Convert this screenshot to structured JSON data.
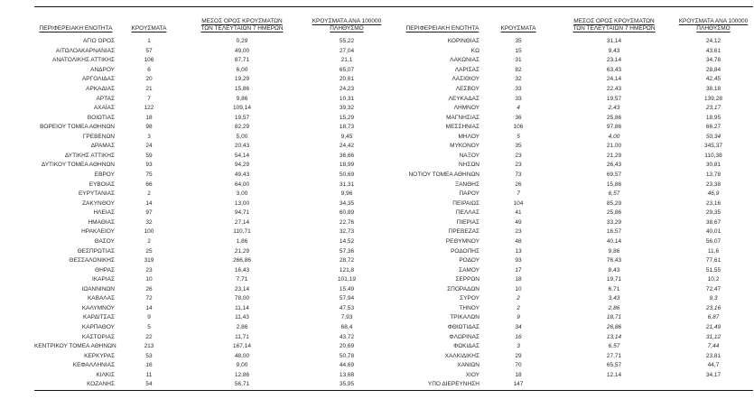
{
  "page": {
    "background": "#ffffff",
    "text_color": "#1e1e1e",
    "rule_color": "#141414"
  },
  "table": {
    "headers": {
      "region": "ΠΕΡΙΦΕΡΕΙΑΚΗ ΕΝΟΤΗΤΑ",
      "cases": "ΚΡΟΥΣΜΑΤΑ",
      "avg7_line1": "ΜΕΣΟΣ ΟΡΟΣ ΚΡΟΥΣΜΑΤΩΝ",
      "avg7_line2": "ΤΩΝ ΤΕΛΕΥΤΑΙΩΝ 7 ΗΜΕΡΩΝ",
      "per100k_line1": "ΚΡΟΥΣΜΑΤΑ ΑΝΑ 100000",
      "per100k_line2": "ΠΛΗΘΥΣΜΟ"
    },
    "left_rows": [
      {
        "region": "ΑΓΙΟ ΟΡΟΣ",
        "cases": "1",
        "avg7": "0,29",
        "per100k": "55,22"
      },
      {
        "region": "ΑΙΤΩΛΟΑΚΑΡΝΑΝΙΑΣ",
        "cases": "57",
        "avg7": "49,00",
        "per100k": "27,04"
      },
      {
        "region": "ΑΝΑΤΟΛΙΚΗΣ ΑΤΤΙΚΗΣ",
        "cases": "106",
        "avg7": "87,71",
        "per100k": "21,1"
      },
      {
        "region": "ΑΝΔΡΟΥ",
        "cases": "6",
        "avg7": "6,00",
        "per100k": "65,07"
      },
      {
        "region": "ΑΡΓΟΛΙΔΑΣ",
        "cases": "20",
        "avg7": "19,29",
        "per100k": "20,61"
      },
      {
        "region": "ΑΡΚΑΔΙΑΣ",
        "cases": "21",
        "avg7": "15,86",
        "per100k": "24,23"
      },
      {
        "region": "ΑΡΤΑΣ",
        "cases": "7",
        "avg7": "9,86",
        "per100k": "10,31"
      },
      {
        "region": "ΑΧΑΪΑΣ",
        "cases": "122",
        "avg7": "109,14",
        "per100k": "39,32"
      },
      {
        "region": "ΒΟΙΩΤΙΑΣ",
        "cases": "18",
        "avg7": "19,57",
        "per100k": "15,29"
      },
      {
        "region": "ΒΟΡΕΙΟΥ ΤΟΜΕΑ ΑΘΗΝΩΝ",
        "cases": "98",
        "avg7": "82,29",
        "per100k": "18,73"
      },
      {
        "region": "ΓΡΕΒΕΝΩΝ",
        "cases": "3",
        "avg7": "5,00",
        "per100k": "9,45"
      },
      {
        "region": "ΔΡΑΜΑΣ",
        "cases": "24",
        "avg7": "20,43",
        "per100k": "24,42"
      },
      {
        "region": "ΔΥΤΙΚΗΣ ΑΤΤΙΚΗΣ",
        "cases": "59",
        "avg7": "54,14",
        "per100k": "36,66"
      },
      {
        "region": "ΔΥΤΙΚΟΥ ΤΟΜΕΑ ΑΘΗΝΩΝ",
        "cases": "93",
        "avg7": "94,29",
        "per100k": "18,99"
      },
      {
        "region": "ΕΒΡΟΥ",
        "cases": "75",
        "avg7": "49,43",
        "per100k": "50,69"
      },
      {
        "region": "ΕΥΒΟΙΑΣ",
        "cases": "66",
        "avg7": "64,00",
        "per100k": "31,31"
      },
      {
        "region": "ΕΥΡΥΤΑΝΙΑΣ",
        "cases": "2",
        "avg7": "3,00",
        "per100k": "9,96"
      },
      {
        "region": "ΖΑΚΥΝΘΟΥ",
        "cases": "14",
        "avg7": "13,00",
        "per100k": "34,35"
      },
      {
        "region": "ΗΛΕΙΑΣ",
        "cases": "97",
        "avg7": "94,71",
        "per100k": "60,89"
      },
      {
        "region": "ΗΜΑΘΙΑΣ",
        "cases": "32",
        "avg7": "27,14",
        "per100k": "22,76"
      },
      {
        "region": "ΗΡΑΚΛΕΙΟΥ",
        "cases": "100",
        "avg7": "110,71",
        "per100k": "32,73"
      },
      {
        "region": "ΘΑΣΟΥ",
        "cases": "2",
        "avg7": "1,86",
        "per100k": "14,52"
      },
      {
        "region": "ΘΕΣΠΡΩΤΙΑΣ",
        "cases": "25",
        "avg7": "21,29",
        "per100k": "57,36"
      },
      {
        "region": "ΘΕΣΣΑΛΟΝΙΚΗΣ",
        "cases": "319",
        "avg7": "266,86",
        "per100k": "28,72"
      },
      {
        "region": "ΘΗΡΑΣ",
        "cases": "23",
        "avg7": "16,43",
        "per100k": "121,8"
      },
      {
        "region": "ΙΚΑΡΙΑΣ",
        "cases": "10",
        "avg7": "7,71",
        "per100k": "101,19"
      },
      {
        "region": "ΙΩΑΝΝΙΝΩΝ",
        "cases": "26",
        "avg7": "23,14",
        "per100k": "15,49"
      },
      {
        "region": "ΚΑΒΑΛΑΣ",
        "cases": "72",
        "avg7": "78,00",
        "per100k": "57,94"
      },
      {
        "region": "ΚΑΛΥΜΝΟΥ",
        "cases": "14",
        "avg7": "11,14",
        "per100k": "47,53"
      },
      {
        "region": "ΚΑΡΔΙΤΣΑΣ",
        "cases": "9",
        "avg7": "11,43",
        "per100k": "7,93"
      },
      {
        "region": "ΚΑΡΠΑΘΟΥ",
        "cases": "5",
        "avg7": "2,86",
        "per100k": "68,4"
      },
      {
        "region": "ΚΑΣΤΟΡΙΑΣ",
        "cases": "22",
        "avg7": "11,71",
        "per100k": "43,72"
      },
      {
        "region": "ΚΕΝΤΡΙΚΟΥ ΤΟΜΕΑ ΑΘΗΝΩΝ",
        "cases": "213",
        "avg7": "167,14",
        "per100k": "20,69"
      },
      {
        "region": "ΚΕΡΚΥΡΑΣ",
        "cases": "53",
        "avg7": "48,00",
        "per100k": "50,78"
      },
      {
        "region": "ΚΕΦΑΛΛΗΝΙΑΣ",
        "cases": "16",
        "avg7": "9,00",
        "per100k": "44,69"
      },
      {
        "region": "ΚΙΛΚΙΣ",
        "cases": "11",
        "avg7": "12,86",
        "per100k": "13,68"
      },
      {
        "region": "ΚΟΖΑΝΗΣ",
        "cases": "54",
        "avg7": "56,71",
        "per100k": "35,95"
      }
    ],
    "right_rows": [
      {
        "region": "ΚΟΡΙΝΘΙΑΣ",
        "cases": "35",
        "avg7": "31,14",
        "per100k": "24,12"
      },
      {
        "region": "ΚΩ",
        "cases": "15",
        "avg7": "9,43",
        "per100k": "43,61"
      },
      {
        "region": "ΛΑΚΩΝΙΑΣ",
        "cases": "31",
        "avg7": "23,14",
        "per100k": "34,78"
      },
      {
        "region": "ΛΑΡΙΣΑΣ",
        "cases": "82",
        "avg7": "63,43",
        "per100k": "28,84"
      },
      {
        "region": "ΛΑΣΙΘΙΟΥ",
        "cases": "32",
        "avg7": "24,14",
        "per100k": "42,45"
      },
      {
        "region": "ΛΕΣΒΟΥ",
        "cases": "33",
        "avg7": "22,43",
        "per100k": "38,18"
      },
      {
        "region": "ΛΕΥΚΑΔΑΣ",
        "cases": "33",
        "avg7": "19,57",
        "per100k": "139,28"
      },
      {
        "region": "ΛΗΜΝΟΥ",
        "cases": "4",
        "avg7": "2,43",
        "per100k": "23,17",
        "italic": true
      },
      {
        "region": "ΜΑΓΝΗΣΙΑΣ",
        "cases": "36",
        "avg7": "25,86",
        "per100k": "18,95"
      },
      {
        "region": "ΜΕΣΣΗΝΙΑΣ",
        "cases": "106",
        "avg7": "97,86",
        "per100k": "66,27"
      },
      {
        "region": "ΜΗΛΟΥ",
        "cases": "5",
        "avg7": "4,00",
        "per100k": "50,34",
        "italic": true
      },
      {
        "region": "ΜΥΚΟΝΟΥ",
        "cases": "35",
        "avg7": "21,00",
        "per100k": "345,37"
      },
      {
        "region": "ΝΑΞΟΥ",
        "cases": "23",
        "avg7": "21,29",
        "per100k": "110,38"
      },
      {
        "region": "ΝΗΣΩΝ",
        "cases": "23",
        "avg7": "26,43",
        "per100k": "30,81"
      },
      {
        "region": "ΝΟΤΙΟΥ ΤΟΜΕΑ ΑΘΗΝΩΝ",
        "cases": "73",
        "avg7": "69,57",
        "per100k": "13,78"
      },
      {
        "region": "ΞΑΝΘΗΣ",
        "cases": "26",
        "avg7": "15,86",
        "per100k": "23,38"
      },
      {
        "region": "ΠΑΡΟΥ",
        "cases": "7",
        "avg7": "6,57",
        "per100k": "46,9",
        "italic": true
      },
      {
        "region": "ΠΕΙΡΑΙΩΣ",
        "cases": "104",
        "avg7": "85,29",
        "per100k": "23,16"
      },
      {
        "region": "ΠΕΛΛΑΣ",
        "cases": "41",
        "avg7": "25,86",
        "per100k": "29,35"
      },
      {
        "region": "ΠΙΕΡΙΑΣ",
        "cases": "49",
        "avg7": "33,29",
        "per100k": "38,67"
      },
      {
        "region": "ΠΡΕΒΕΖΑΣ",
        "cases": "23",
        "avg7": "16,57",
        "per100k": "40,01"
      },
      {
        "region": "ΡΕΘΥΜΝΟΥ",
        "cases": "48",
        "avg7": "40,14",
        "per100k": "56,07"
      },
      {
        "region": "ΡΟΔΟΠΗΣ",
        "cases": "13",
        "avg7": "9,86",
        "per100k": "11,6"
      },
      {
        "region": "ΡΟΔΟΥ",
        "cases": "93",
        "avg7": "76,43",
        "per100k": "77,61"
      },
      {
        "region": "ΣΑΜΟΥ",
        "cases": "17",
        "avg7": "8,43",
        "per100k": "51,55"
      },
      {
        "region": "ΣΕΡΡΩΝ",
        "cases": "18",
        "avg7": "19,71",
        "per100k": "10,2"
      },
      {
        "region": "ΣΠΟΡΑΔΩΝ",
        "cases": "10",
        "avg7": "6,71",
        "per100k": "72,47"
      },
      {
        "region": "ΣΥΡΟΥ",
        "cases": "2",
        "avg7": "3,43",
        "per100k": "9,3",
        "italic": true
      },
      {
        "region": "ΤΗΝΟΥ",
        "cases": "2",
        "avg7": "2,86",
        "per100k": "23,16",
        "italic": true
      },
      {
        "region": "ΤΡΙΚΑΛΩΝ",
        "cases": "9",
        "avg7": "18,71",
        "per100k": "6,87",
        "italic": true
      },
      {
        "region": "ΦΘΙΩΤΙΔΑΣ",
        "cases": "34",
        "avg7": "26,86",
        "per100k": "21,49",
        "italic": true
      },
      {
        "region": "ΦΛΩΡΙΝΑΣ",
        "cases": "16",
        "avg7": "13,14",
        "per100k": "31,12",
        "italic": true
      },
      {
        "region": "ΦΩΚΙΔΑΣ",
        "cases": "3",
        "avg7": "6,57",
        "per100k": "7,44",
        "italic": true
      },
      {
        "region": "ΧΑΛΚΙΔΙΚΗΣ",
        "cases": "29",
        "avg7": "27,71",
        "per100k": "23,81"
      },
      {
        "region": "ΧΑΝΙΩΝ",
        "cases": "70",
        "avg7": "65,57",
        "per100k": "44,7"
      },
      {
        "region": "ΧΙΟΥ",
        "cases": "18",
        "avg7": "12,14",
        "per100k": "34,17"
      },
      {
        "region": "ΥΠΟ ΔΙΕΡΕΥΝΗΣΗ",
        "cases": "147",
        "avg7": "",
        "per100k": ""
      }
    ]
  }
}
